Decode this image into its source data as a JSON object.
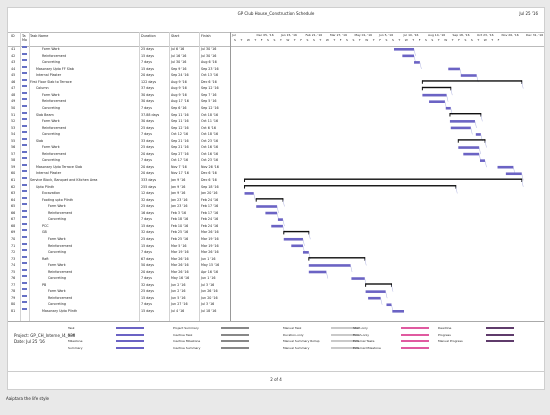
{
  "doc": {
    "title": "GP Club House_Construction Schedule",
    "date": "Jul 25 '16"
  },
  "header": {
    "id": "ID",
    "mode": "Ta Mo",
    "name": "Task Name",
    "duration": "Duration",
    "start": "Start",
    "finish": "Finish"
  },
  "timescale": {
    "weeks": [
      "Jul",
      "Dec 05, '16",
      "Jan 15, '16",
      "Feb 21, '16",
      "Mar 27, '16",
      "May 01, '16",
      "Jun 5, '16",
      "Jul 10, '16",
      "Aug 14, '16",
      "Sep 18, '16",
      "Oct 23, '16",
      "Nov 26, '16",
      "Dec 31, '16"
    ],
    "days": "S  T  W  T  F  S  S  T  W  T  F  S  S  T  W  T  F  S  S  T  W  T  F  S  S  T  W  T  F  S  S  T  W  T  F  S  S  T  W  T  F"
  },
  "tasks": [
    {
      "id": "41",
      "name": "Form Work",
      "indent": 2,
      "dur": "25 days",
      "start": "Jul 6 '16",
      "finish": "Jul 30 '16"
    },
    {
      "id": "42",
      "name": "Reinforcement",
      "indent": 2,
      "dur": "15 days",
      "start": "Jul 16 '16",
      "finish": "Jul 30 '16"
    },
    {
      "id": "43",
      "name": "Concreting",
      "indent": 2,
      "dur": "7 days",
      "start": "Jul 30 '16",
      "finish": "Aug 6 '16"
    },
    {
      "id": "44",
      "name": "Masonary Upto FF Slab",
      "indent": 1,
      "dur": "15 days",
      "start": "Sep 9 '16",
      "finish": "Sep 23 '16"
    },
    {
      "id": "45",
      "name": "Internal Plaster",
      "indent": 1,
      "dur": "20 days",
      "start": "Sep 24 '16",
      "finish": "Oct 13 '16"
    },
    {
      "id": "46",
      "name": "First Floor Slab to Terrace",
      "indent": 0,
      "dur": "122 days",
      "start": "Aug 9 '16",
      "finish": "Dec 6 '16"
    },
    {
      "id": "47",
      "name": "Column",
      "indent": 1,
      "dur": "37 days",
      "start": "Aug 9 '16",
      "finish": "Sep 12 '16"
    },
    {
      "id": "48",
      "name": "Form Work",
      "indent": 2,
      "dur": "30 days",
      "start": "Aug 9 '16",
      "finish": "Sep 7 '16"
    },
    {
      "id": "49",
      "name": "Reinforcement",
      "indent": 2,
      "dur": "30 days",
      "start": "Aug 17 '16",
      "finish": "Sep 5 '16"
    },
    {
      "id": "50",
      "name": "Concreting",
      "indent": 2,
      "dur": "7 days",
      "start": "Sep 6 '16",
      "finish": "Sep 12 '16"
    },
    {
      "id": "51",
      "name": "Slab Beam",
      "indent": 1,
      "dur": "37.88 days",
      "start": "Sep 11 '16",
      "finish": "Oct 18 '16"
    },
    {
      "id": "52",
      "name": "Form Work",
      "indent": 2,
      "dur": "30 days",
      "start": "Sep 11 '16",
      "finish": "Oct 11 '16"
    },
    {
      "id": "53",
      "name": "Reinforcement",
      "indent": 2,
      "dur": "25 days",
      "start": "Sep 12 '16",
      "finish": "Oct 6 '16"
    },
    {
      "id": "54",
      "name": "Concreting",
      "indent": 2,
      "dur": "7 days",
      "start": "Oct 12 '16",
      "finish": "Oct 18 '16"
    },
    {
      "id": "55",
      "name": "Slab",
      "indent": 1,
      "dur": "33 days",
      "start": "Sep 21 '16",
      "finish": "Oct 23 '16"
    },
    {
      "id": "56",
      "name": "Form Work",
      "indent": 2,
      "dur": "25 days",
      "start": "Sep 21 '16",
      "finish": "Oct 16 '16"
    },
    {
      "id": "57",
      "name": "Reinforcement",
      "indent": 2,
      "dur": "20 days",
      "start": "Sep 27 '16",
      "finish": "Oct 16 '16"
    },
    {
      "id": "58",
      "name": "Concreting",
      "indent": 2,
      "dur": "7 days",
      "start": "Oct 17 '16",
      "finish": "Oct 23 '16"
    },
    {
      "id": "59",
      "name": "Masonary Upto Terrace Slab",
      "indent": 1,
      "dur": "20 days",
      "start": "Nov 7 '16",
      "finish": "Nov 26 '16"
    },
    {
      "id": "60",
      "name": "Internal Plaster",
      "indent": 1,
      "dur": "20 days",
      "start": "Nov 17 '16",
      "finish": "Dec 6 '16"
    },
    {
      "id": "61",
      "name": "Service Block, Banquet and Kitchen Area",
      "indent": 0,
      "dur": "333 days",
      "start": "Jan 9 '16",
      "finish": "Dec 6 '16"
    },
    {
      "id": "62",
      "name": "Upto Plinth",
      "indent": 1,
      "dur": "255 days",
      "start": "Jan 9 '16",
      "finish": "Sep 18 '16"
    },
    {
      "id": "63",
      "name": "Excavation",
      "indent": 2,
      "dur": "12 days",
      "start": "Jan 9 '16",
      "finish": "Jan 20 '16"
    },
    {
      "id": "64",
      "name": "Footing upto Plinth",
      "indent": 2,
      "dur": "32 days",
      "start": "Jan 23 '16",
      "finish": "Feb 24 '16"
    },
    {
      "id": "65",
      "name": "Form Work",
      "indent": 3,
      "dur": "25 days",
      "start": "Jan 23 '16",
      "finish": "Feb 17 '16"
    },
    {
      "id": "66",
      "name": "Reinforcement",
      "indent": 3,
      "dur": "16 days",
      "start": "Feb 3 '16",
      "finish": "Feb 17 '16"
    },
    {
      "id": "67",
      "name": "Concreting",
      "indent": 3,
      "dur": "7 days",
      "start": "Feb 18 '16",
      "finish": "Feb 24 '16"
    },
    {
      "id": "68",
      "name": "PCC",
      "indent": 2,
      "dur": "15 days",
      "start": "Feb 10 '16",
      "finish": "Feb 24 '16"
    },
    {
      "id": "69",
      "name": "GB",
      "indent": 2,
      "dur": "32 days",
      "start": "Feb 25 '16",
      "finish": "Mar 26 '16"
    },
    {
      "id": "70",
      "name": "Form Work",
      "indent": 3,
      "dur": "25 days",
      "start": "Feb 25 '16",
      "finish": "Mar 19 '16"
    },
    {
      "id": "71",
      "name": "Reinforcement",
      "indent": 3,
      "dur": "15 days",
      "start": "Mar 5 '16",
      "finish": "Mar 19 '16"
    },
    {
      "id": "72",
      "name": "Concreting",
      "indent": 3,
      "dur": "7 days",
      "start": "Mar 19 '16",
      "finish": "Mar 26 '16"
    },
    {
      "id": "73",
      "name": "Raft",
      "indent": 2,
      "dur": "67 days",
      "start": "Mar 26 '16",
      "finish": "Jun 1 '16"
    },
    {
      "id": "74",
      "name": "Form Work",
      "indent": 3,
      "dur": "50 days",
      "start": "Mar 26 '16",
      "finish": "May 15 '16"
    },
    {
      "id": "75",
      "name": "Reinforcement",
      "indent": 3,
      "dur": "20 days",
      "start": "Mar 26 '16",
      "finish": "Apr 16 '16"
    },
    {
      "id": "76",
      "name": "Concreting",
      "indent": 3,
      "dur": "7 days",
      "start": "May 16 '16",
      "finish": "Jun 1 '16"
    },
    {
      "id": "77",
      "name": "PB",
      "indent": 2,
      "dur": "32 days",
      "start": "Jun 2 '16",
      "finish": "Jul 3 '16"
    },
    {
      "id": "78",
      "name": "Form Work",
      "indent": 3,
      "dur": "25 days",
      "start": "Jun 2 '16",
      "finish": "Jun 26 '16"
    },
    {
      "id": "79",
      "name": "Reinforcement",
      "indent": 3,
      "dur": "15 days",
      "start": "Jun 5 '16",
      "finish": "Jun 20 '16"
    },
    {
      "id": "80",
      "name": "Concreting",
      "indent": 3,
      "dur": "7 days",
      "start": "Jun 27 '16",
      "finish": "Jul 3 '16"
    },
    {
      "id": "81",
      "name": "Masonary Upto Plinth",
      "indent": 2,
      "dur": "15 days",
      "start": "Jul 4 '16",
      "finish": "Jul 18 '16"
    }
  ],
  "legend": {
    "col1": [
      "Task",
      "Split",
      "Milestone",
      "Summary"
    ],
    "col2": [
      "Project Summary",
      "Inactive Task",
      "Inactive Milestone",
      "Inactive Summary"
    ],
    "col3": [
      "Manual Task",
      "Duration-only",
      "Manual Summary Rollup",
      "Manual Summary"
    ],
    "col4": [
      "Start-only",
      "Finish-only",
      "External Tasks",
      "External Milestone"
    ],
    "col5": [
      "Deadline",
      "Progress",
      "Manual Progress"
    ]
  },
  "project": {
    "line1": "Project: GP_CH_Interne_I4_030",
    "line2": "Date: Jul 25 '16"
  },
  "footer": {
    "page": "2 of 4"
  },
  "status": {
    "left": "Aaiptara the life style"
  },
  "colors": {
    "task": "#6b63c4",
    "summary": "#111111",
    "grid": "#d3d3d3"
  }
}
